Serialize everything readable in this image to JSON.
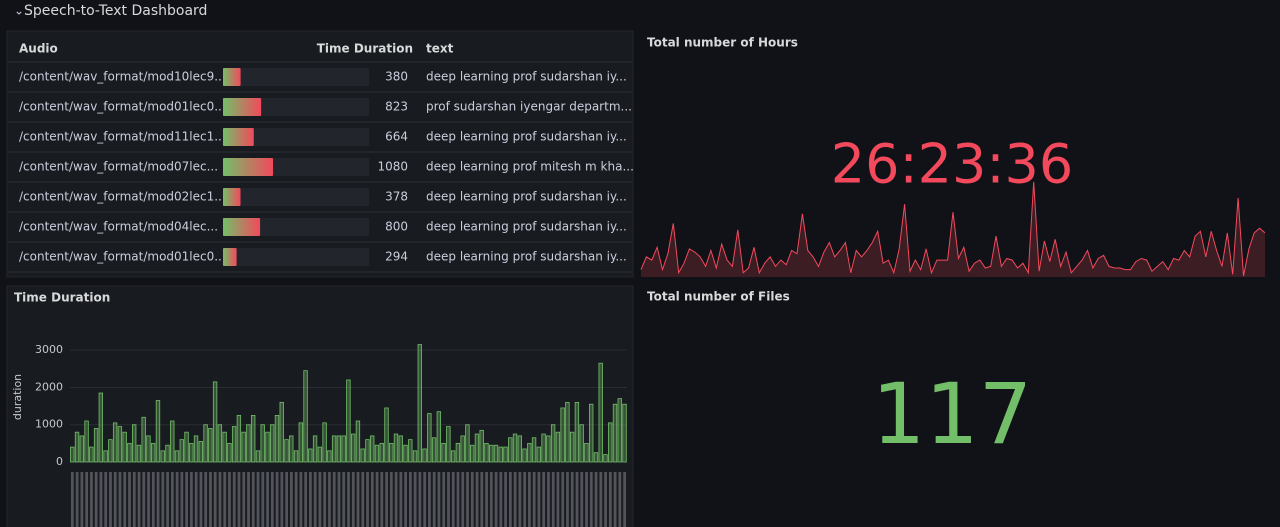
{
  "dashboard": {
    "title": "Speech-to-Text Dashboard"
  },
  "table": {
    "columns": [
      "Audio",
      "Time Duration",
      "text"
    ],
    "rows": [
      [
        "/content/wav_format/mod10lec9...",
        380,
        "deep learning prof sudarshan iy..."
      ],
      [
        "/content/wav_format/mod01lec0...",
        823,
        "prof sudarshan iyengar departm..."
      ],
      [
        "/content/wav_format/mod11lec1...",
        664,
        "deep learning prof sudarshan iy..."
      ],
      [
        "/content/wav_format/mod07lec...",
        1080,
        "deep learning prof mitesh m kha..."
      ],
      [
        "/content/wav_format/mod02lec1...",
        378,
        "deep learning prof sudarshan iy..."
      ],
      [
        "/content/wav_format/mod04lec...",
        800,
        "deep learning prof sudarshan iy..."
      ],
      [
        "/content/wav_format/mod01lec0...",
        294,
        "deep learning prof sudarshan iy..."
      ]
    ]
  },
  "hours": {
    "title": "Total number of Hours",
    "value": "26:23:36",
    "color": "#f2495c"
  },
  "files": {
    "title": "Total number of Files",
    "value": 117,
    "color": "#73bf69"
  },
  "chart_data": {
    "type": "bar",
    "title": "Time Duration",
    "y_label": "duration",
    "color": "#73bf69",
    "values": [
      400,
      800,
      700,
      1100,
      400,
      900,
      1850,
      300,
      600,
      1050,
      950,
      800,
      500,
      1000,
      450,
      1200,
      700,
      500,
      1650,
      300,
      450,
      1100,
      300,
      600,
      800,
      500,
      700,
      550,
      1000,
      900,
      2150,
      1000,
      800,
      500,
      950,
      1250,
      800,
      1000,
      1250,
      300,
      1000,
      800,
      1000,
      1250,
      1600,
      600,
      700,
      300,
      1050,
      2450,
      350,
      700,
      400,
      1050,
      300,
      700,
      700,
      700,
      2200,
      750,
      1100,
      350,
      600,
      700,
      450,
      500,
      1450,
      500,
      750,
      700,
      450,
      600,
      300,
      3150,
      350,
      1300,
      650,
      1350,
      500,
      950,
      300,
      500,
      700,
      1000,
      450,
      750,
      850,
      500,
      450,
      450,
      400,
      400,
      650,
      750,
      700,
      350,
      500,
      650,
      400,
      750,
      700,
      1000,
      800,
      1450,
      1600,
      800,
      1600,
      1000,
      500,
      1550,
      250,
      2650,
      200,
      1050,
      1550,
      1700,
      1550
    ],
    "ylim": [
      0,
      3300
    ],
    "yticks": [
      0,
      1000,
      2000,
      3000
    ],
    "grid": true
  }
}
